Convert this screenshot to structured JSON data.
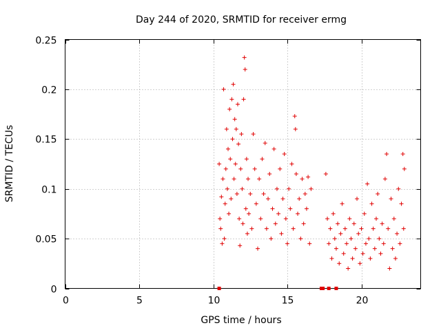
{
  "chart_data": {
    "type": "scatter",
    "title": "Day 244 of 2020, SRMTID for receiver ermg",
    "xlabel": "GPS time / hours",
    "ylabel": "SRMTID / TECUs",
    "xlim": [
      0,
      24
    ],
    "ylim": [
      0,
      0.25
    ],
    "xticks": [
      0,
      5,
      10,
      15,
      20
    ],
    "xtick_labels": [
      "0",
      "5",
      "10",
      "15",
      "20"
    ],
    "yticks": [
      0,
      0.05,
      0.1,
      0.15,
      0.2,
      0.25
    ],
    "ytick_labels": [
      "0",
      "0.05",
      "0.1",
      "0.15",
      "0.2",
      "0.25"
    ],
    "grid": true,
    "marker": "+",
    "color": "#e00000",
    "series": [
      {
        "name": "SRMTID",
        "points": [
          [
            10.4,
            0.125
          ],
          [
            10.45,
            0.07
          ],
          [
            10.5,
            0.06
          ],
          [
            10.55,
            0.092
          ],
          [
            10.6,
            0.045
          ],
          [
            10.65,
            0.11
          ],
          [
            10.7,
            0.2
          ],
          [
            10.75,
            0.05
          ],
          [
            10.8,
            0.085
          ],
          [
            10.85,
            0.12
          ],
          [
            10.9,
            0.16
          ],
          [
            10.95,
            0.1
          ],
          [
            11.0,
            0.14
          ],
          [
            11.05,
            0.075
          ],
          [
            11.1,
            0.18
          ],
          [
            11.15,
            0.13
          ],
          [
            11.2,
            0.09
          ],
          [
            11.25,
            0.19
          ],
          [
            11.3,
            0.15
          ],
          [
            11.35,
            0.205
          ],
          [
            11.4,
            0.11
          ],
          [
            11.45,
            0.17
          ],
          [
            11.5,
            0.125
          ],
          [
            11.55,
            0.16
          ],
          [
            11.6,
            0.095
          ],
          [
            11.65,
            0.185
          ],
          [
            11.7,
            0.145
          ],
          [
            11.75,
            0.07
          ],
          [
            11.8,
            0.043
          ],
          [
            11.85,
            0.12
          ],
          [
            11.9,
            0.155
          ],
          [
            11.95,
            0.1
          ],
          [
            12.0,
            0.065
          ],
          [
            12.05,
            0.19
          ],
          [
            12.1,
            0.232
          ],
          [
            12.15,
            0.22
          ],
          [
            12.2,
            0.08
          ],
          [
            12.25,
            0.13
          ],
          [
            12.3,
            0.055
          ],
          [
            12.35,
            0.11
          ],
          [
            12.4,
            0.075
          ],
          [
            12.5,
            0.095
          ],
          [
            12.6,
            0.06
          ],
          [
            12.7,
            0.155
          ],
          [
            12.8,
            0.12
          ],
          [
            12.9,
            0.085
          ],
          [
            13.0,
            0.04
          ],
          [
            13.1,
            0.11
          ],
          [
            13.2,
            0.07
          ],
          [
            13.3,
            0.13
          ],
          [
            13.4,
            0.095
          ],
          [
            13.5,
            0.146
          ],
          [
            13.6,
            0.06
          ],
          [
            13.7,
            0.09
          ],
          [
            13.8,
            0.115
          ],
          [
            13.9,
            0.05
          ],
          [
            14.0,
            0.08
          ],
          [
            14.1,
            0.14
          ],
          [
            14.2,
            0.065
          ],
          [
            14.3,
            0.1
          ],
          [
            14.4,
            0.075
          ],
          [
            14.5,
            0.12
          ],
          [
            14.6,
            0.055
          ],
          [
            14.7,
            0.09
          ],
          [
            14.8,
            0.135
          ],
          [
            14.9,
            0.07
          ],
          [
            15.0,
            0.045
          ],
          [
            15.1,
            0.1
          ],
          [
            15.2,
            0.08
          ],
          [
            15.3,
            0.125
          ],
          [
            15.4,
            0.06
          ],
          [
            15.5,
            0.173
          ],
          [
            15.55,
            0.16
          ],
          [
            15.6,
            0.115
          ],
          [
            15.7,
            0.075
          ],
          [
            15.8,
            0.09
          ],
          [
            15.9,
            0.05
          ],
          [
            16.0,
            0.11
          ],
          [
            16.1,
            0.065
          ],
          [
            16.2,
            0.095
          ],
          [
            16.3,
            0.08
          ],
          [
            16.4,
            0.112
          ],
          [
            16.5,
            0.045
          ],
          [
            16.6,
            0.1
          ],
          [
            17.6,
            0.115
          ],
          [
            17.7,
            0.07
          ],
          [
            17.8,
            0.045
          ],
          [
            17.9,
            0.06
          ],
          [
            18.0,
            0.03
          ],
          [
            18.1,
            0.075
          ],
          [
            18.2,
            0.05
          ],
          [
            18.3,
            0.04
          ],
          [
            18.4,
            0.065
          ],
          [
            18.5,
            0.025
          ],
          [
            18.6,
            0.055
          ],
          [
            18.7,
            0.085
          ],
          [
            18.8,
            0.035
          ],
          [
            18.9,
            0.06
          ],
          [
            19.0,
            0.045
          ],
          [
            19.1,
            0.02
          ],
          [
            19.2,
            0.07
          ],
          [
            19.3,
            0.05
          ],
          [
            19.4,
            0.03
          ],
          [
            19.5,
            0.065
          ],
          [
            19.6,
            0.04
          ],
          [
            19.7,
            0.09
          ],
          [
            19.8,
            0.055
          ],
          [
            19.9,
            0.025
          ],
          [
            20.0,
            0.06
          ],
          [
            20.1,
            0.035
          ],
          [
            20.2,
            0.075
          ],
          [
            20.3,
            0.045
          ],
          [
            20.4,
            0.105
          ],
          [
            20.5,
            0.05
          ],
          [
            20.6,
            0.03
          ],
          [
            20.7,
            0.085
          ],
          [
            20.8,
            0.06
          ],
          [
            20.9,
            0.04
          ],
          [
            21.0,
            0.07
          ],
          [
            21.1,
            0.095
          ],
          [
            21.2,
            0.05
          ],
          [
            21.3,
            0.035
          ],
          [
            21.4,
            0.065
          ],
          [
            21.5,
            0.045
          ],
          [
            21.6,
            0.11
          ],
          [
            21.7,
            0.135
          ],
          [
            21.8,
            0.06
          ],
          [
            21.9,
            0.02
          ],
          [
            22.0,
            0.09
          ],
          [
            22.1,
            0.04
          ],
          [
            22.2,
            0.07
          ],
          [
            22.3,
            0.03
          ],
          [
            22.4,
            0.055
          ],
          [
            22.5,
            0.1
          ],
          [
            22.6,
            0.045
          ],
          [
            22.7,
            0.085
          ],
          [
            22.8,
            0.135
          ],
          [
            22.85,
            0.06
          ],
          [
            22.9,
            0.12
          ]
        ]
      }
    ],
    "outage_markers_x": [
      10.4,
      17.3,
      17.4,
      17.8,
      18.3
    ]
  }
}
